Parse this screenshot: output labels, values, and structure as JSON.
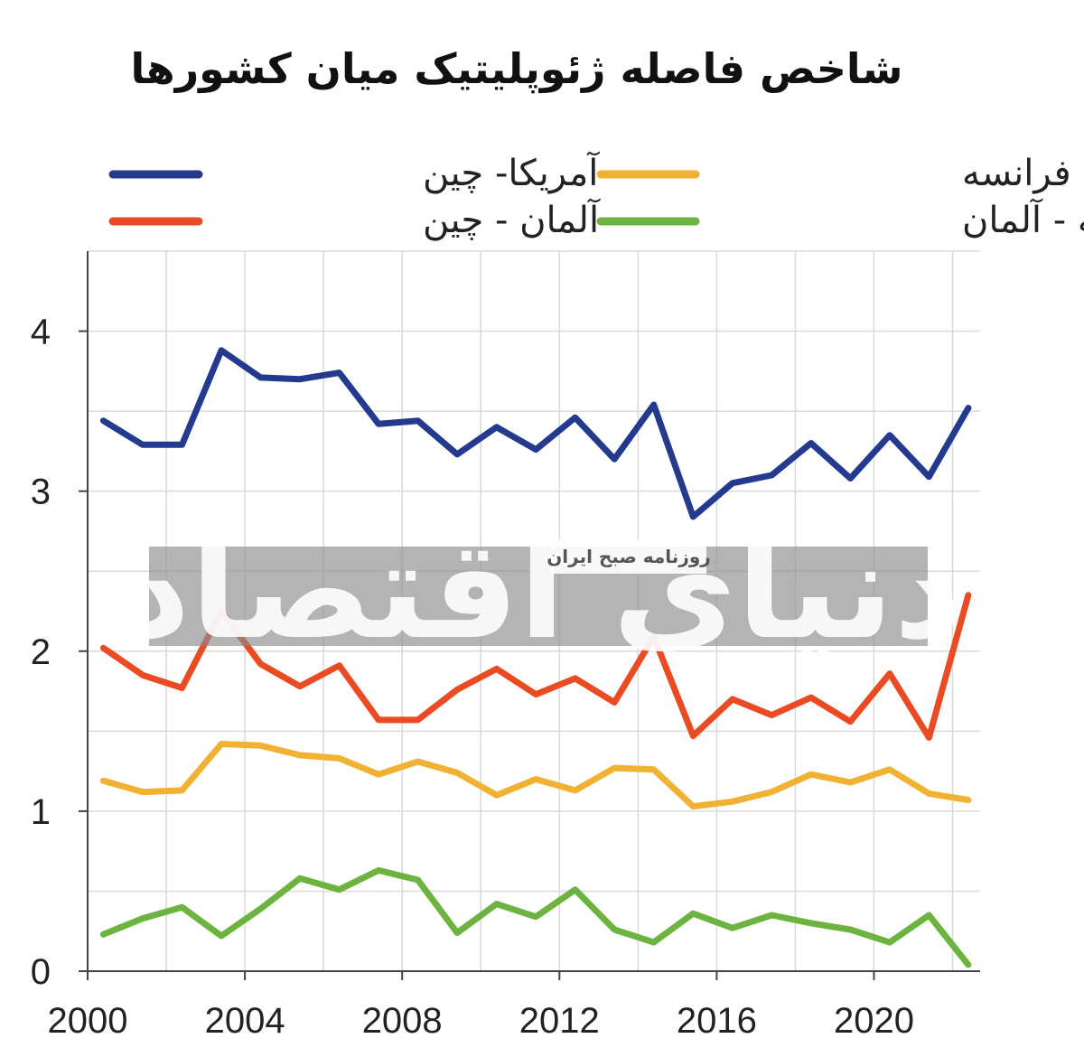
{
  "chart_data": {
    "type": "line",
    "title": "شاخص فاصله ژئوپلیتیک میان کشورها",
    "xlabel": "",
    "ylabel": "",
    "xlim": [
      2000,
      2022.7
    ],
    "ylim": [
      0,
      4.5
    ],
    "x_ticks": [
      2000,
      2004,
      2008,
      2012,
      2016,
      2020
    ],
    "y_ticks": [
      0,
      1,
      2,
      3,
      4
    ],
    "grid": true,
    "legend_position": "top",
    "x": [
      2000.4,
      2001.4,
      2002.4,
      2003.4,
      2004.4,
      2005.4,
      2006.4,
      2007.4,
      2008.4,
      2009.4,
      2010.4,
      2011.4,
      2012.4,
      2013.4,
      2014.4,
      2015.4,
      2016.4,
      2017.4,
      2018.4,
      2019.4,
      2020.4,
      2021.4,
      2022.4
    ],
    "series": [
      {
        "name": "آمریکا- چین",
        "color": "#233a8f",
        "values": [
          3.44,
          3.29,
          3.29,
          3.88,
          3.71,
          3.7,
          3.74,
          3.42,
          3.44,
          3.23,
          3.4,
          3.26,
          3.46,
          3.2,
          3.54,
          2.84,
          3.05,
          3.1,
          3.3,
          3.08,
          3.35,
          3.09,
          3.52
        ]
      },
      {
        "name": "آمریکا- فرانسه",
        "color": "#f1b234",
        "values": [
          1.19,
          1.12,
          1.13,
          1.42,
          1.41,
          1.35,
          1.33,
          1.23,
          1.31,
          1.24,
          1.1,
          1.2,
          1.13,
          1.27,
          1.26,
          1.03,
          1.06,
          1.12,
          1.23,
          1.18,
          1.26,
          1.11,
          1.07
        ]
      },
      {
        "name": "آلمان - چین",
        "color": "#ea4b22",
        "values": [
          2.02,
          1.85,
          1.77,
          2.25,
          1.92,
          1.78,
          1.91,
          1.57,
          1.57,
          1.76,
          1.89,
          1.73,
          1.83,
          1.68,
          2.09,
          1.47,
          1.7,
          1.6,
          1.71,
          1.56,
          1.86,
          1.46,
          2.35
        ]
      },
      {
        "name": "فرانسه - آلمان",
        "color": "#6cb33f",
        "values": [
          0.23,
          0.33,
          0.4,
          0.22,
          0.39,
          0.58,
          0.51,
          0.63,
          0.57,
          0.24,
          0.42,
          0.34,
          0.51,
          0.26,
          0.18,
          0.36,
          0.27,
          0.35,
          0.3,
          0.26,
          0.18,
          0.35,
          0.04
        ]
      }
    ]
  },
  "watermark": {
    "logo_text": "دنیای اقتصاد",
    "tagline": "روزنامه صبح ایران"
  }
}
